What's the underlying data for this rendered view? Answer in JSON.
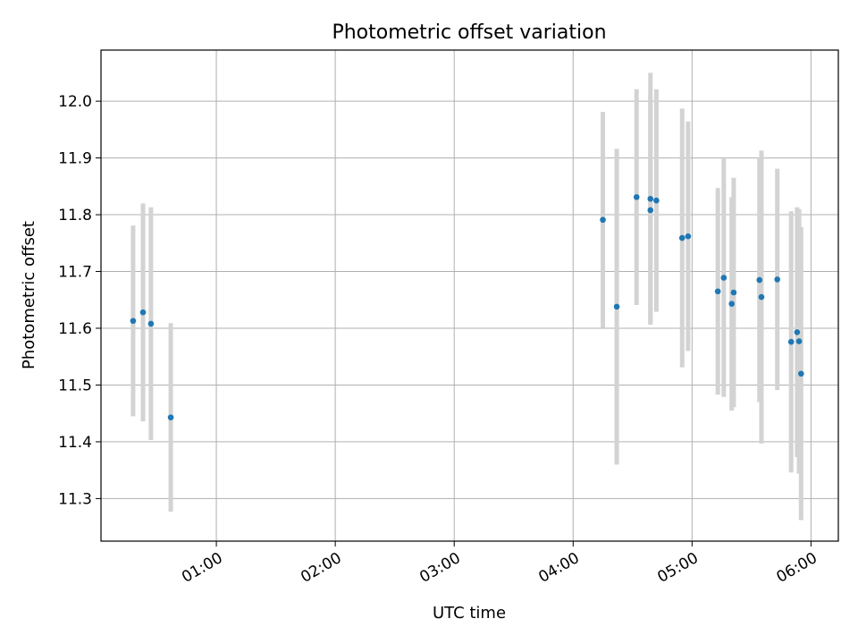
{
  "chart_data": {
    "type": "scatter",
    "title": "Photometric offset variation",
    "xlabel": "UTC time",
    "ylabel": "Photometric offset",
    "x_tick_labels": [
      "01:00",
      "02:00",
      "03:00",
      "04:00",
      "05:00",
      "06:00"
    ],
    "x_ticks_hours": [
      1,
      2,
      3,
      4,
      5,
      6
    ],
    "y_ticks": [
      11.3,
      11.4,
      11.5,
      11.6,
      11.7,
      11.8,
      11.9,
      12.0
    ],
    "xlim_hours": [
      0.03,
      6.23
    ],
    "ylim": [
      11.225,
      12.09
    ],
    "grid": true,
    "colors": {
      "point": "#1f77b4",
      "errorbar": "#d3d3d3",
      "grid": "#b0b0b0"
    },
    "points": [
      {
        "t": "00:18",
        "y": 11.613,
        "err": 0.168
      },
      {
        "t": "00:23",
        "y": 11.628,
        "err": 0.192
      },
      {
        "t": "00:27",
        "y": 11.608,
        "err": 0.205
      },
      {
        "t": "00:37",
        "y": 11.443,
        "err": 0.166
      },
      {
        "t": "04:15",
        "y": 11.791,
        "err": 0.19
      },
      {
        "t": "04:22",
        "y": 11.638,
        "err": 0.278
      },
      {
        "t": "04:32",
        "y": 11.831,
        "err": 0.19
      },
      {
        "t": "04:39",
        "y": 11.808,
        "err": 0.2
      },
      {
        "t": "04:39",
        "y": 11.828,
        "err": 0.222
      },
      {
        "t": "04:42",
        "y": 11.825,
        "err": 0.196
      },
      {
        "t": "04:55",
        "y": 11.759,
        "err": 0.228
      },
      {
        "t": "04:58",
        "y": 11.762,
        "err": 0.202
      },
      {
        "t": "05:13",
        "y": 11.665,
        "err": 0.182
      },
      {
        "t": "05:16",
        "y": 11.689,
        "err": 0.21
      },
      {
        "t": "05:20",
        "y": 11.643,
        "err": 0.188
      },
      {
        "t": "05:21",
        "y": 11.663,
        "err": 0.202
      },
      {
        "t": "05:34",
        "y": 11.685,
        "err": 0.215
      },
      {
        "t": "05:35",
        "y": 11.655,
        "err": 0.258
      },
      {
        "t": "05:43",
        "y": 11.686,
        "err": 0.195
      },
      {
        "t": "05:50",
        "y": 11.576,
        "err": 0.23
      },
      {
        "t": "05:53",
        "y": 11.593,
        "err": 0.22
      },
      {
        "t": "05:54",
        "y": 11.577,
        "err": 0.233
      },
      {
        "t": "05:55",
        "y": 11.52,
        "err": 0.258
      }
    ]
  }
}
